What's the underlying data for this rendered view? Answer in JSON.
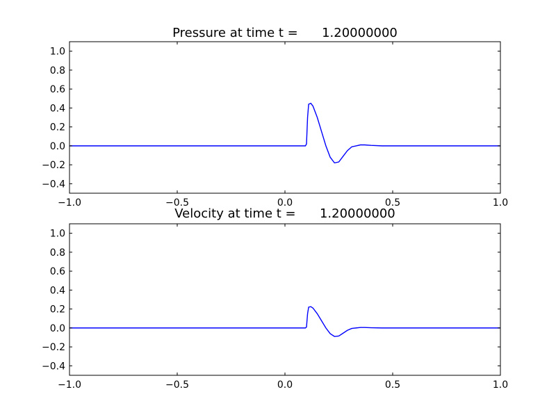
{
  "chart_data": [
    {
      "type": "line",
      "title": "Pressure at time t =      1.20000000",
      "xlabel": "",
      "ylabel": "",
      "xlim": [
        -1.0,
        1.0
      ],
      "ylim": [
        -0.5,
        1.1
      ],
      "xticks": [
        -1.0,
        -0.5,
        0.0,
        0.5,
        1.0
      ],
      "xtick_labels": [
        "−1.0",
        "−0.5",
        "0.0",
        "0.5",
        "1.0"
      ],
      "yticks": [
        -0.4,
        -0.2,
        0.0,
        0.2,
        0.4,
        0.6,
        0.8,
        1.0
      ],
      "ytick_labels": [
        "−0.4",
        "−0.2",
        "0.0",
        "0.2",
        "0.4",
        "0.6",
        "0.8",
        "1.0"
      ],
      "grid": false,
      "color": "#0000ff",
      "series": [
        {
          "x": [
            -1.0,
            0.0,
            0.08,
            0.095,
            0.1,
            0.105,
            0.11,
            0.12,
            0.13,
            0.15,
            0.17,
            0.19,
            0.21,
            0.23,
            0.25,
            0.27,
            0.29,
            0.31,
            0.33,
            0.35,
            0.37,
            0.4,
            0.45,
            0.5,
            0.6,
            0.8,
            1.0
          ],
          "y": [
            0.0,
            0.0,
            0.0,
            0.0,
            0.02,
            0.3,
            0.44,
            0.45,
            0.42,
            0.3,
            0.15,
            0.0,
            -0.12,
            -0.18,
            -0.17,
            -0.11,
            -0.05,
            -0.01,
            0.0,
            0.01,
            0.01,
            0.005,
            0.0,
            0.0,
            0.0,
            0.0,
            0.0
          ]
        }
      ]
    },
    {
      "type": "line",
      "title": "Velocity at time t =      1.20000000",
      "xlabel": "",
      "ylabel": "",
      "xlim": [
        -1.0,
        1.0
      ],
      "ylim": [
        -0.5,
        1.1
      ],
      "xticks": [
        -1.0,
        -0.5,
        0.0,
        0.5,
        1.0
      ],
      "xtick_labels": [
        "−1.0",
        "−0.5",
        "0.0",
        "0.5",
        "1.0"
      ],
      "yticks": [
        -0.4,
        -0.2,
        0.0,
        0.2,
        0.4,
        0.6,
        0.8,
        1.0
      ],
      "ytick_labels": [
        "−0.4",
        "−0.2",
        "0.0",
        "0.2",
        "0.4",
        "0.6",
        "0.8",
        "1.0"
      ],
      "grid": false,
      "color": "#0000ff",
      "series": [
        {
          "x": [
            -1.0,
            0.0,
            0.08,
            0.095,
            0.1,
            0.105,
            0.11,
            0.12,
            0.13,
            0.15,
            0.17,
            0.19,
            0.21,
            0.23,
            0.25,
            0.27,
            0.29,
            0.31,
            0.33,
            0.35,
            0.37,
            0.4,
            0.45,
            0.5,
            0.6,
            0.8,
            1.0
          ],
          "y": [
            0.0,
            0.0,
            0.0,
            0.0,
            0.01,
            0.15,
            0.22,
            0.225,
            0.21,
            0.15,
            0.075,
            0.0,
            -0.06,
            -0.09,
            -0.085,
            -0.055,
            -0.025,
            -0.005,
            0.0,
            0.005,
            0.005,
            0.0025,
            0.0,
            0.0,
            0.0,
            0.0,
            0.0
          ]
        }
      ]
    }
  ]
}
